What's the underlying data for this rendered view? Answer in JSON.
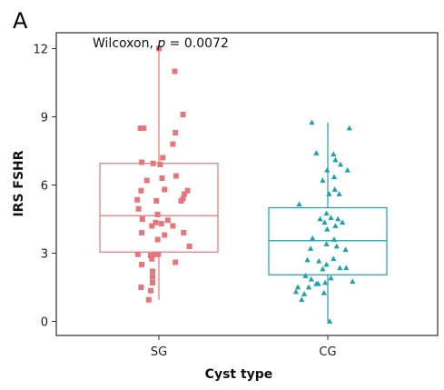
{
  "panel_letter": "A",
  "chart_data": {
    "type": "box",
    "title": "",
    "xlabel": "Cyst type",
    "ylabel": "IRS FSHR",
    "ylim": [
      -1,
      12.6
    ],
    "yticks": [
      0,
      3,
      6,
      9,
      12
    ],
    "ytick_labels": [
      "0",
      "3",
      "6",
      "9",
      "12"
    ],
    "categories": [
      "SG",
      "CG"
    ],
    "annotation": {
      "prefix": "Wilcoxon, ",
      "p_symbol": "p",
      "suffix": " = 0.0072"
    },
    "grid": false,
    "legend": "none",
    "series": [
      {
        "category": "SG",
        "color": "#e8747c",
        "marker": "square",
        "box": {
          "q1": 3.05,
          "median": 4.65,
          "q3": 6.95,
          "whisker_low": 0.95,
          "whisker_high": 12
        },
        "points": [
          {
            "x": 0.0,
            "y": 12.0
          },
          {
            "x": 0.25,
            "y": 11.0
          },
          {
            "x": 0.38,
            "y": 9.1
          },
          {
            "x": -0.29,
            "y": 8.5
          },
          {
            "x": -0.24,
            "y": 8.5
          },
          {
            "x": 0.26,
            "y": 8.3
          },
          {
            "x": 0.22,
            "y": 7.8
          },
          {
            "x": 0.06,
            "y": 7.2
          },
          {
            "x": -0.27,
            "y": 7.0
          },
          {
            "x": -0.09,
            "y": 6.95
          },
          {
            "x": 0.02,
            "y": 6.9
          },
          {
            "x": 0.27,
            "y": 6.4
          },
          {
            "x": 0.05,
            "y": 6.3
          },
          {
            "x": -0.19,
            "y": 6.2
          },
          {
            "x": 0.09,
            "y": 5.8
          },
          {
            "x": 0.45,
            "y": 5.75
          },
          {
            "x": -0.28,
            "y": 5.75
          },
          {
            "x": 0.4,
            "y": 5.6
          },
          {
            "x": 0.38,
            "y": 5.4
          },
          {
            "x": -0.34,
            "y": 5.35
          },
          {
            "x": -0.04,
            "y": 5.3
          },
          {
            "x": 0.35,
            "y": 5.3
          },
          {
            "x": -0.32,
            "y": 4.95
          },
          {
            "x": -0.02,
            "y": 4.7
          },
          {
            "x": -0.26,
            "y": 4.5
          },
          {
            "x": 0.14,
            "y": 4.45
          },
          {
            "x": -0.05,
            "y": 4.35
          },
          {
            "x": 0.04,
            "y": 4.3
          },
          {
            "x": -0.11,
            "y": 4.2
          },
          {
            "x": 0.22,
            "y": 4.2
          },
          {
            "x": 0.39,
            "y": 3.9
          },
          {
            "x": -0.27,
            "y": 3.9
          },
          {
            "x": 0.09,
            "y": 3.8
          },
          {
            "x": -0.02,
            "y": 3.6
          },
          {
            "x": 0.48,
            "y": 3.3
          },
          {
            "x": -0.33,
            "y": 2.95
          },
          {
            "x": -0.06,
            "y": 2.95
          },
          {
            "x": -0.01,
            "y": 2.95
          },
          {
            "x": -0.13,
            "y": 2.9
          },
          {
            "x": -0.11,
            "y": 2.75
          },
          {
            "x": 0.26,
            "y": 2.6
          },
          {
            "x": -0.27,
            "y": 2.5
          },
          {
            "x": -0.1,
            "y": 2.2
          },
          {
            "x": -0.1,
            "y": 1.95
          },
          {
            "x": -0.1,
            "y": 1.7
          },
          {
            "x": -0.28,
            "y": 1.5
          },
          {
            "x": -0.13,
            "y": 1.35
          },
          {
            "x": -0.16,
            "y": 0.95
          }
        ]
      },
      {
        "category": "CG",
        "color": "#1aa3ae",
        "marker": "triangle",
        "box": {
          "q1": 2.05,
          "median": 3.55,
          "q3": 5.0,
          "whisker_low": 0,
          "whisker_high": 8.75
        },
        "points": [
          {
            "x": -0.25,
            "y": 8.75
          },
          {
            "x": 0.34,
            "y": 8.5
          },
          {
            "x": -0.18,
            "y": 7.4
          },
          {
            "x": 0.09,
            "y": 7.35
          },
          {
            "x": 0.12,
            "y": 7.1
          },
          {
            "x": 0.2,
            "y": 6.9
          },
          {
            "x": -0.01,
            "y": 6.65
          },
          {
            "x": 0.31,
            "y": 6.65
          },
          {
            "x": 0.1,
            "y": 6.35
          },
          {
            "x": -0.08,
            "y": 6.2
          },
          {
            "x": 0.11,
            "y": 5.8
          },
          {
            "x": 0.02,
            "y": 5.6
          },
          {
            "x": 0.18,
            "y": 5.6
          },
          {
            "x": -0.45,
            "y": 5.15
          },
          {
            "x": -0.02,
            "y": 4.75
          },
          {
            "x": 0.05,
            "y": 4.55
          },
          {
            "x": -0.12,
            "y": 4.5
          },
          {
            "x": 0.16,
            "y": 4.5
          },
          {
            "x": -0.05,
            "y": 4.35
          },
          {
            "x": 0.23,
            "y": 4.35
          },
          {
            "x": 0.12,
            "y": 4.2
          },
          {
            "x": -0.01,
            "y": 4.05
          },
          {
            "x": -0.24,
            "y": 3.65
          },
          {
            "x": 0.1,
            "y": 3.6
          },
          {
            "x": -0.02,
            "y": 3.4
          },
          {
            "x": 0.14,
            "y": 3.3
          },
          {
            "x": -0.27,
            "y": 3.2
          },
          {
            "x": 0.28,
            "y": 3.15
          },
          {
            "x": 0.09,
            "y": 2.75
          },
          {
            "x": -0.32,
            "y": 2.7
          },
          {
            "x": -0.14,
            "y": 2.65
          },
          {
            "x": -0.02,
            "y": 2.5
          },
          {
            "x": 0.19,
            "y": 2.35
          },
          {
            "x": 0.29,
            "y": 2.35
          },
          {
            "x": -0.08,
            "y": 2.3
          },
          {
            "x": -0.35,
            "y": 2.0
          },
          {
            "x": 0.05,
            "y": 1.9
          },
          {
            "x": -0.26,
            "y": 1.85
          },
          {
            "x": -0.04,
            "y": 1.7
          },
          {
            "x": -0.18,
            "y": 1.65
          },
          {
            "x": -0.15,
            "y": 1.65
          },
          {
            "x": 0.39,
            "y": 1.75
          },
          {
            "x": -0.3,
            "y": 1.5
          },
          {
            "x": -0.47,
            "y": 1.5
          },
          {
            "x": -0.5,
            "y": 1.3
          },
          {
            "x": -0.37,
            "y": 1.2
          },
          {
            "x": -0.06,
            "y": 1.25
          },
          {
            "x": -0.41,
            "y": 0.95
          },
          {
            "x": 0.03,
            "y": 0.0
          }
        ]
      }
    ]
  }
}
